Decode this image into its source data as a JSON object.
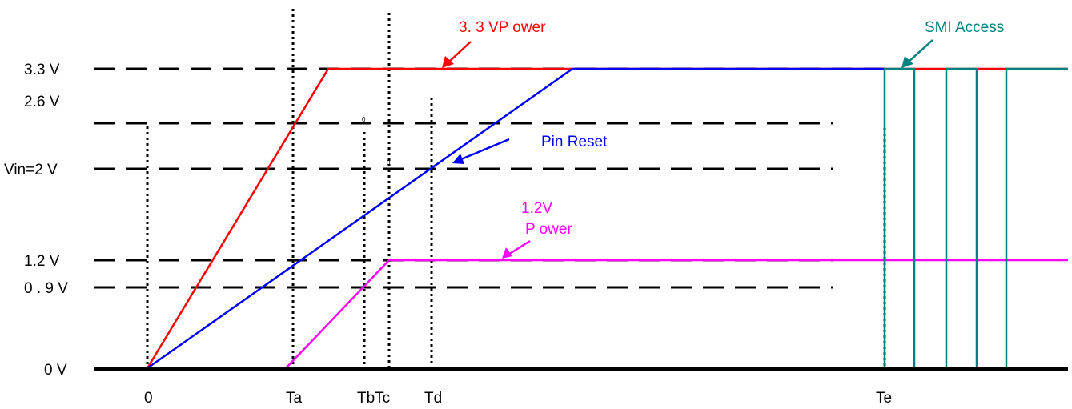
{
  "y_labels": {
    "v33": "3.3 V",
    "v26": "2.6 V",
    "vin": "Vin=2 V",
    "v12": "1.2 V",
    "v09": "0 . 9 V",
    "v0": "0 V"
  },
  "x_labels": {
    "t0": "0",
    "ta": "Ta",
    "tbtc": "TbTc",
    "td": "Td",
    "te": "Te"
  },
  "annotations": {
    "power33": "3. 3 VP ower",
    "smi": "SMI Access",
    "pin_reset": "Pin Reset",
    "power12_line1": "1.2V",
    "power12_line2": "P ower",
    "tiny_b": "0",
    "tiny_c": "0"
  },
  "colors": {
    "power33": "#ff0000",
    "pin_reset": "#0000ff",
    "power12": "#ff00ff",
    "smi": "#008080",
    "axis": "#000000"
  }
}
